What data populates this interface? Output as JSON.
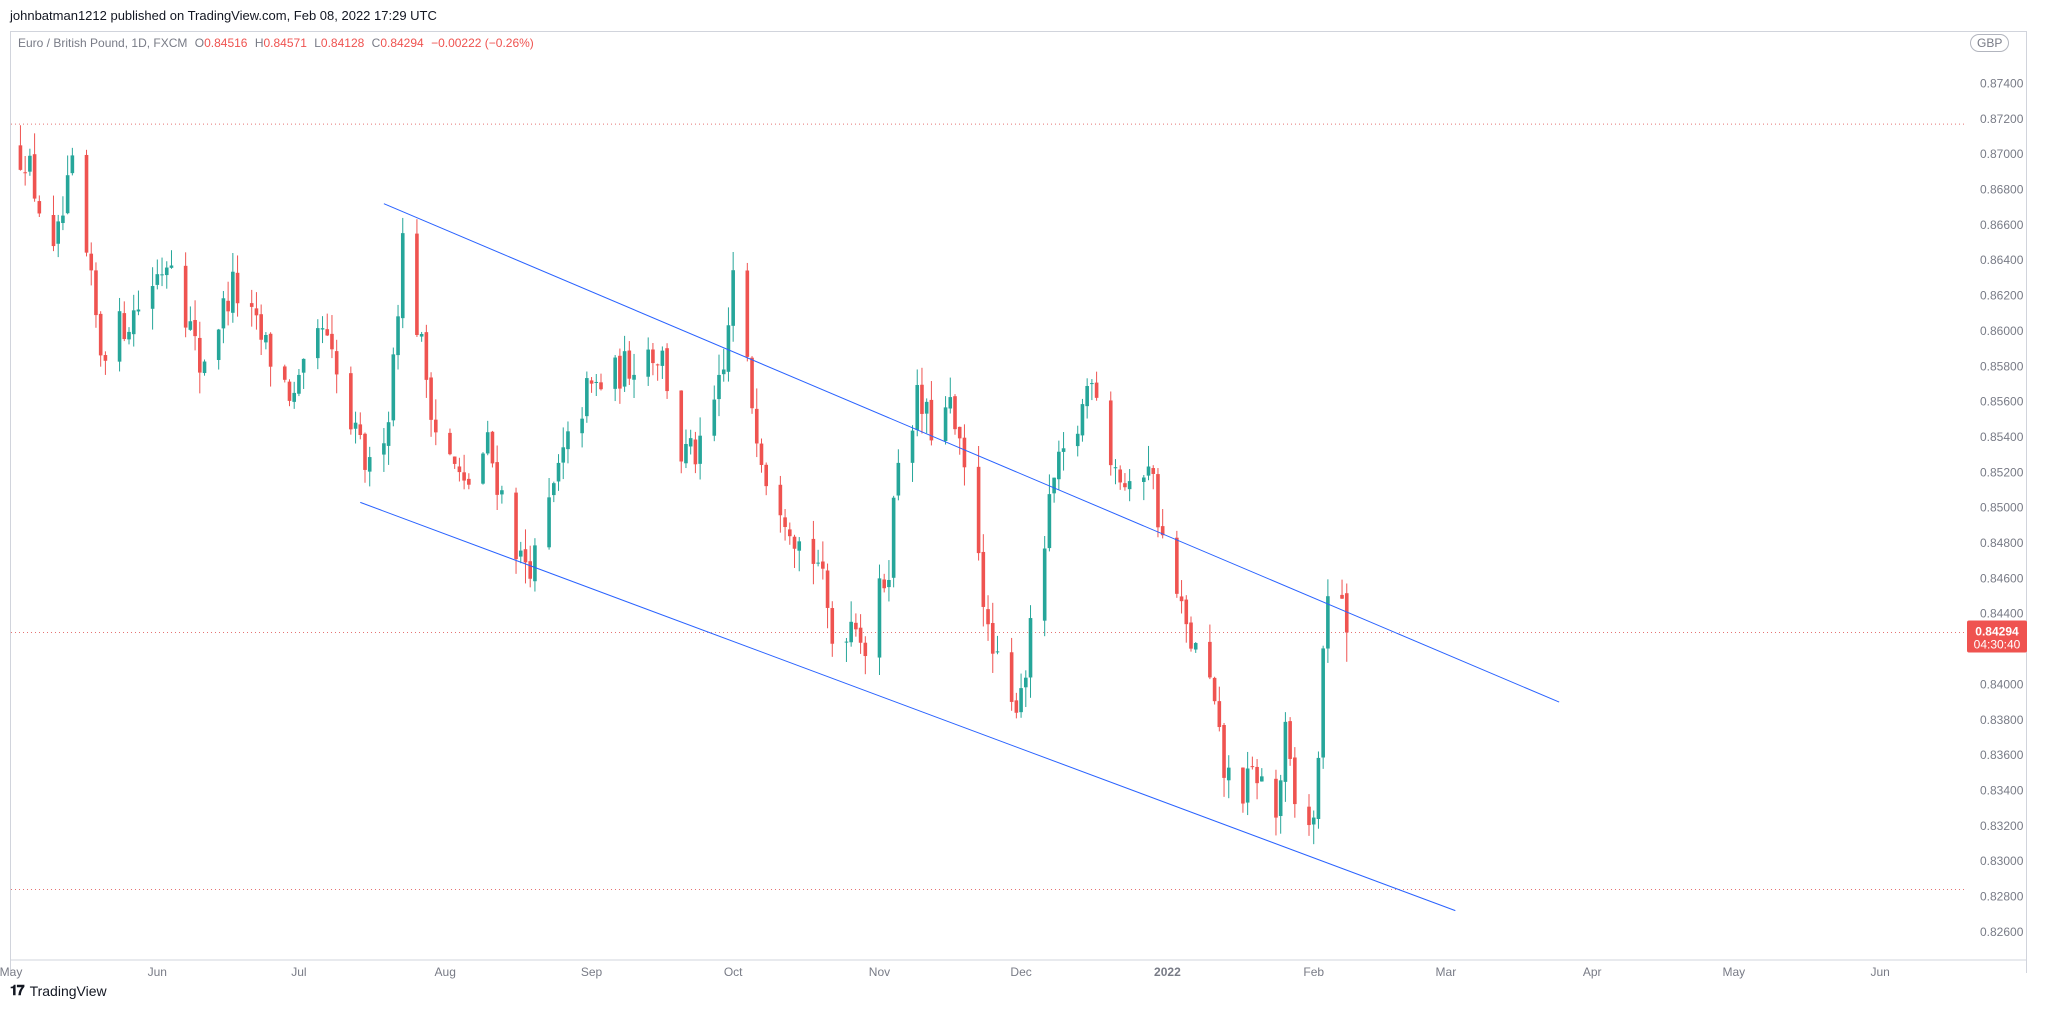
{
  "header": {
    "published": "johnbatman1212 published on TradingView.com, Feb 08, 2022 17:29 UTC"
  },
  "legend": {
    "symbol": "Euro / British Pound, 1D, FXCM",
    "o_label": "O",
    "o": "0.84516",
    "h_label": "H",
    "h": "0.84571",
    "l_label": "L",
    "l": "0.84128",
    "c_label": "C",
    "c": "0.84294",
    "change": "−0.00222 (−0.26%)"
  },
  "currency": "GBP",
  "price_label": {
    "price": "0.84294",
    "countdown": "04:30:40"
  },
  "footer": {
    "brand": "TradingView"
  },
  "colors": {
    "up": "#26a69a",
    "down": "#ef5350",
    "trendline": "#2962ff",
    "hline": "#e57373"
  },
  "chart_data": {
    "type": "candlestick",
    "ylim": [
      0.8252,
      0.8768
    ],
    "y_ticks": [
      "0.87400",
      "0.87200",
      "0.87000",
      "0.86800",
      "0.86600",
      "0.86400",
      "0.86200",
      "0.86000",
      "0.85800",
      "0.85600",
      "0.85400",
      "0.85200",
      "0.85000",
      "0.84800",
      "0.84600",
      "0.84400",
      "0.84000",
      "0.83800",
      "0.83600",
      "0.83400",
      "0.83200",
      "0.83000",
      "0.82800",
      "0.82600"
    ],
    "x_ticks": [
      {
        "label": "May",
        "date": "2021-05-01"
      },
      {
        "label": "Jun",
        "date": "2021-06-01"
      },
      {
        "label": "Jul",
        "date": "2021-07-01"
      },
      {
        "label": "Aug",
        "date": "2021-08-01"
      },
      {
        "label": "Sep",
        "date": "2021-09-01"
      },
      {
        "label": "Oct",
        "date": "2021-10-01"
      },
      {
        "label": "Nov",
        "date": "2021-11-01"
      },
      {
        "label": "Dec",
        "date": "2021-12-01"
      },
      {
        "label": "2022",
        "date": "2022-01-01"
      },
      {
        "label": "Feb",
        "date": "2022-02-01"
      },
      {
        "label": "Mar",
        "date": "2022-03-01"
      },
      {
        "label": "Apr",
        "date": "2022-04-01"
      },
      {
        "label": "May",
        "date": "2022-05-01"
      },
      {
        "label": "Jun",
        "date": "2022-06-01"
      }
    ],
    "candles": {
      "first_date": "2021-05-03",
      "last_date": "2022-02-08",
      "anchors": [
        {
          "date": "2021-05-04",
          "close": 0.87
        },
        {
          "date": "2021-05-10",
          "close": 0.864
        },
        {
          "date": "2021-05-14",
          "close": 0.869
        },
        {
          "date": "2021-05-20",
          "close": 0.859
        },
        {
          "date": "2021-05-27",
          "close": 0.861
        },
        {
          "date": "2021-06-04",
          "close": 0.8645
        },
        {
          "date": "2021-06-10",
          "close": 0.858
        },
        {
          "date": "2021-06-17",
          "close": 0.8625
        },
        {
          "date": "2021-06-24",
          "close": 0.859
        },
        {
          "date": "2021-06-30",
          "close": 0.856
        },
        {
          "date": "2021-07-06",
          "close": 0.86
        },
        {
          "date": "2021-07-12",
          "close": 0.8545
        },
        {
          "date": "2021-07-16",
          "close": 0.852
        },
        {
          "date": "2021-07-20",
          "close": 0.8555
        },
        {
          "date": "2021-07-23",
          "close": 0.865
        },
        {
          "date": "2021-07-30",
          "close": 0.8545
        },
        {
          "date": "2021-08-05",
          "close": 0.851
        },
        {
          "date": "2021-08-10",
          "close": 0.8535
        },
        {
          "date": "2021-08-17",
          "close": 0.847
        },
        {
          "date": "2021-08-20",
          "close": 0.847
        },
        {
          "date": "2021-08-25",
          "close": 0.852
        },
        {
          "date": "2021-08-31",
          "close": 0.8565
        },
        {
          "date": "2021-09-06",
          "close": 0.8575
        },
        {
          "date": "2021-09-13",
          "close": 0.859
        },
        {
          "date": "2021-09-16",
          "close": 0.8585
        },
        {
          "date": "2021-09-20",
          "close": 0.853
        },
        {
          "date": "2021-09-24",
          "close": 0.853
        },
        {
          "date": "2021-09-29",
          "close": 0.8575
        },
        {
          "date": "2021-10-01",
          "close": 0.863
        },
        {
          "date": "2021-10-05",
          "close": 0.856
        },
        {
          "date": "2021-10-08",
          "close": 0.852
        },
        {
          "date": "2021-10-12",
          "close": 0.85
        },
        {
          "date": "2021-10-15",
          "close": 0.848
        },
        {
          "date": "2021-10-19",
          "close": 0.847
        },
        {
          "date": "2021-10-22",
          "close": 0.8425
        },
        {
          "date": "2021-10-27",
          "close": 0.844
        },
        {
          "date": "2021-10-29",
          "close": 0.842
        },
        {
          "date": "2021-11-03",
          "close": 0.847
        },
        {
          "date": "2021-11-05",
          "close": 0.853
        },
        {
          "date": "2021-11-09",
          "close": 0.856
        },
        {
          "date": "2021-11-12",
          "close": 0.8545
        },
        {
          "date": "2021-11-16",
          "close": 0.8555
        },
        {
          "date": "2021-11-18",
          "close": 0.853
        },
        {
          "date": "2021-11-22",
          "close": 0.848
        },
        {
          "date": "2021-11-24",
          "close": 0.8425
        },
        {
          "date": "2021-11-29",
          "close": 0.8385
        },
        {
          "date": "2021-12-02",
          "close": 0.841
        },
        {
          "date": "2021-12-06",
          "close": 0.848
        },
        {
          "date": "2021-12-08",
          "close": 0.8515
        },
        {
          "date": "2021-12-13",
          "close": 0.8545
        },
        {
          "date": "2021-12-16",
          "close": 0.858
        },
        {
          "date": "2021-12-20",
          "close": 0.853
        },
        {
          "date": "2021-12-24",
          "close": 0.8505
        },
        {
          "date": "2021-12-28",
          "close": 0.853
        },
        {
          "date": "2021-12-31",
          "close": 0.848
        },
        {
          "date": "2022-01-05",
          "close": 0.843
        },
        {
          "date": "2022-01-10",
          "close": 0.84
        },
        {
          "date": "2022-01-13",
          "close": 0.835
        },
        {
          "date": "2022-01-17",
          "close": 0.834
        },
        {
          "date": "2022-01-20",
          "close": 0.835
        },
        {
          "date": "2022-01-24",
          "close": 0.8325
        },
        {
          "date": "2022-01-26",
          "close": 0.837
        },
        {
          "date": "2022-01-28",
          "close": 0.833
        },
        {
          "date": "2022-02-01",
          "close": 0.832
        },
        {
          "date": "2022-02-03",
          "close": 0.841
        },
        {
          "date": "2022-02-04",
          "close": 0.8456
        },
        {
          "date": "2022-02-07",
          "close": 0.8452
        },
        {
          "date": "2022-02-08",
          "close": 0.84294
        }
      ],
      "last": {
        "date": "2022-02-08",
        "open": 0.84516,
        "high": 0.84571,
        "low": 0.84128,
        "close": 0.84294
      }
    },
    "trendlines": [
      {
        "name": "channel-upper",
        "start": {
          "date": "2021-07-19",
          "price": 0.8672
        },
        "end": {
          "date": "2022-03-25",
          "price": 0.839
        }
      },
      {
        "name": "channel-lower",
        "start": {
          "date": "2021-07-14",
          "price": 0.8503
        },
        "end": {
          "date": "2022-03-03",
          "price": 0.8272
        }
      }
    ],
    "hlines": [
      {
        "name": "resistance-level",
        "price": 0.8717
      },
      {
        "name": "support-level",
        "price": 0.8284
      },
      {
        "name": "last-price-line",
        "price": 0.84294
      }
    ],
    "grid": false,
    "legend_position": "top-left"
  }
}
